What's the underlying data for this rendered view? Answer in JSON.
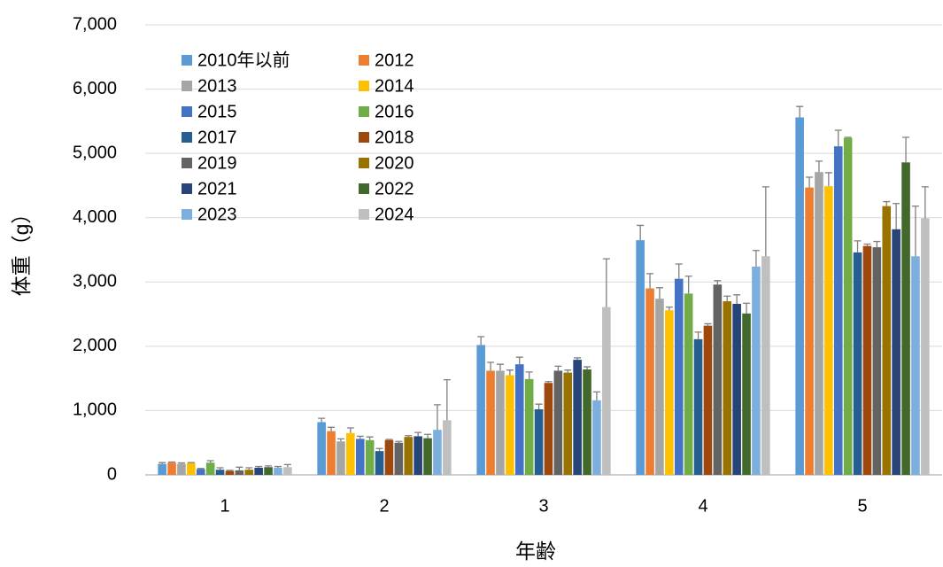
{
  "chart_data": {
    "type": "bar",
    "x_label": "年齢",
    "y_label": "体重（g）",
    "categories": [
      "1",
      "2",
      "3",
      "4",
      "5"
    ],
    "ylim": [
      0,
      7000
    ],
    "yticks": [
      0,
      {
        "value": 1000,
        "label": "1,000"
      },
      {
        "value": 2000,
        "label": "2,000"
      },
      {
        "value": 3000,
        "label": "3,000"
      },
      {
        "value": 4000,
        "label": "4,000"
      },
      {
        "value": 5000,
        "label": "5,000"
      },
      {
        "value": 6000,
        "label": "6,000"
      },
      {
        "value": 7000,
        "label": "7,000"
      }
    ],
    "grid": true,
    "legend": "upper-left",
    "series": [
      {
        "name": "2010年以前",
        "color": "#5b9bd5",
        "values": [
          170,
          820,
          2020,
          3650,
          5560
        ],
        "errors": [
          20,
          60,
          130,
          230,
          170
        ]
      },
      {
        "name": "2012",
        "color": "#ed7d31",
        "values": [
          190,
          680,
          1620,
          2900,
          4470
        ],
        "errors": [
          10,
          60,
          130,
          230,
          160
        ]
      },
      {
        "name": "2013",
        "color": "#a5a5a5",
        "values": [
          170,
          520,
          1620,
          2740,
          4710
        ],
        "errors": [
          15,
          40,
          100,
          170,
          170
        ]
      },
      {
        "name": "2014",
        "color": "#ffc000",
        "values": [
          180,
          650,
          1550,
          2560,
          4490
        ],
        "errors": [
          10,
          80,
          80,
          50,
          210
        ]
      },
      {
        "name": "2015",
        "color": "#4472c4",
        "values": [
          90,
          560,
          1720,
          3050,
          5110
        ],
        "errors": [
          10,
          40,
          110,
          230,
          250
        ]
      },
      {
        "name": "2016",
        "color": "#70ad47",
        "values": [
          190,
          540,
          1490,
          2820,
          5240
        ],
        "errors": [
          30,
          50,
          110,
          270,
          10
        ]
      },
      {
        "name": "2017",
        "color": "#255e91",
        "values": [
          80,
          370,
          1020,
          2110,
          3460
        ],
        "errors": [
          30,
          40,
          80,
          110,
          180
        ]
      },
      {
        "name": "2018",
        "color": "#9e480e",
        "values": [
          60,
          540,
          1430,
          2320,
          3560
        ],
        "errors": [
          10,
          10,
          20,
          30,
          30
        ]
      },
      {
        "name": "2019",
        "color": "#636363",
        "values": [
          70,
          500,
          1620,
          2960,
          3540
        ],
        "errors": [
          50,
          20,
          70,
          60,
          90
        ]
      },
      {
        "name": "2020",
        "color": "#997300",
        "values": [
          80,
          590,
          1590,
          2700,
          4180
        ],
        "errors": [
          30,
          20,
          40,
          80,
          70
        ]
      },
      {
        "name": "2021",
        "color": "#264478",
        "values": [
          110,
          600,
          1790,
          2660,
          3820
        ],
        "errors": [
          20,
          60,
          30,
          140,
          400
        ]
      },
      {
        "name": "2022",
        "color": "#43682b",
        "values": [
          120,
          570,
          1640,
          2510,
          4860
        ],
        "errors": [
          20,
          60,
          40,
          160,
          390
        ]
      },
      {
        "name": "2023",
        "color": "#7cafdd",
        "values": [
          110,
          700,
          1160,
          3240,
          3400
        ],
        "errors": [
          20,
          390,
          130,
          250,
          780
        ]
      },
      {
        "name": "2024",
        "color": "#bfbfbf",
        "values": [
          120,
          850,
          2610,
          3400,
          3990
        ],
        "errors": [
          40,
          630,
          750,
          1080,
          490
        ]
      }
    ]
  }
}
